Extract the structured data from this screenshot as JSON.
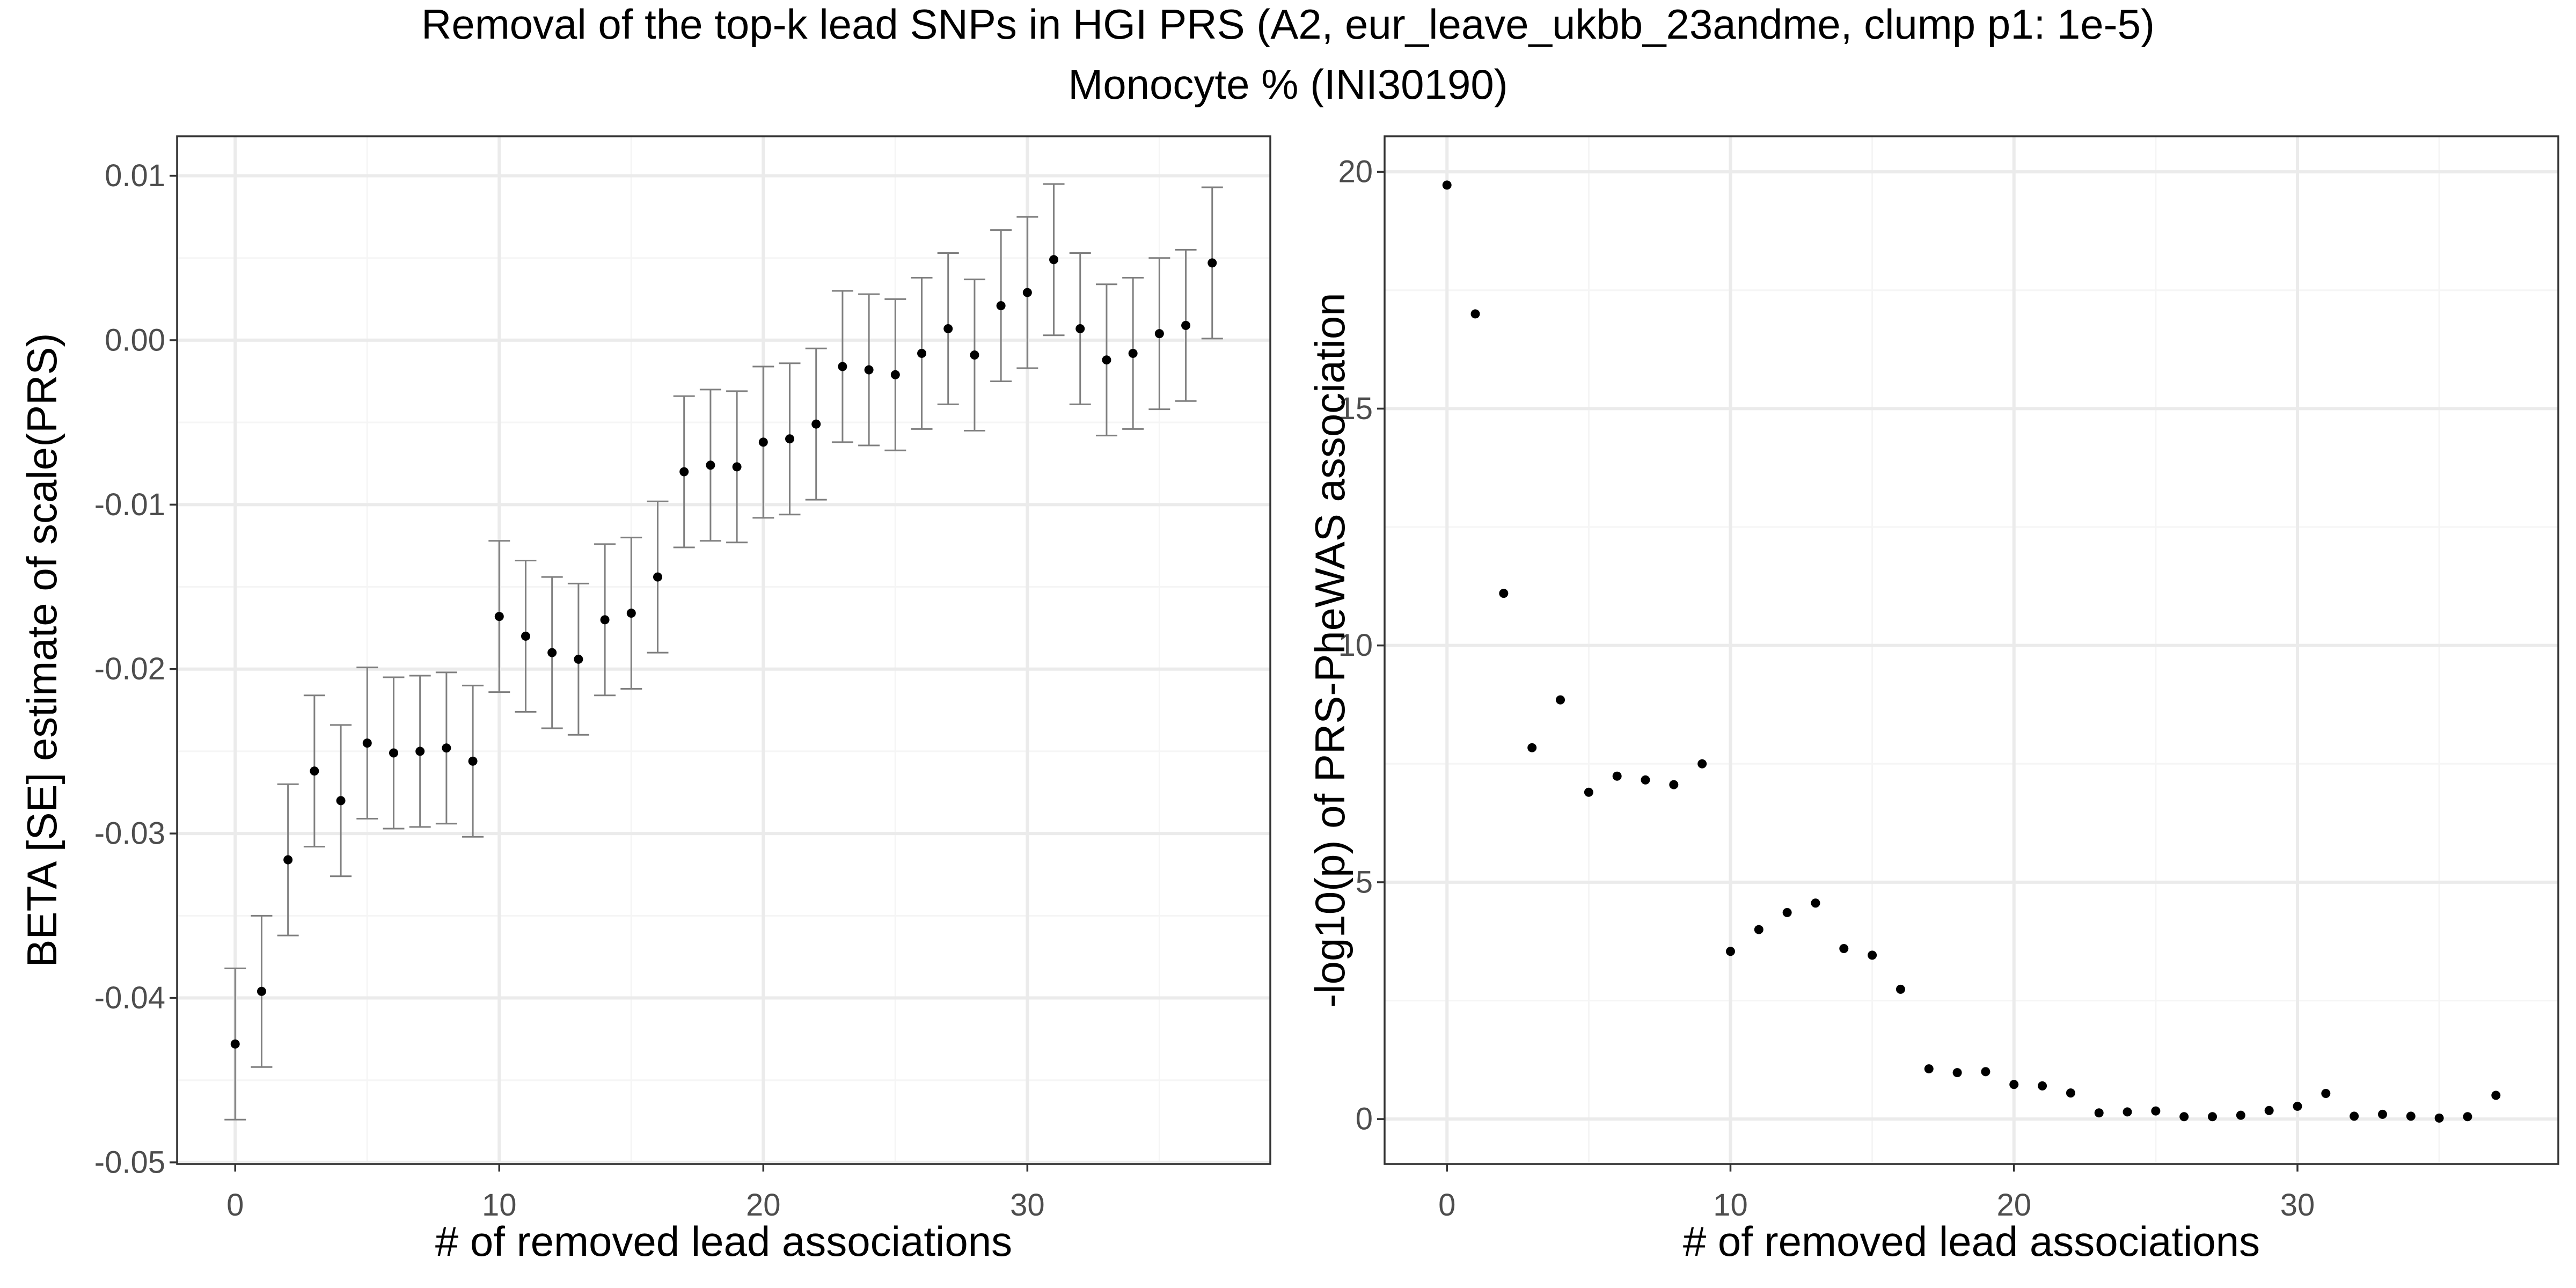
{
  "title": {
    "line1": "Removal of the top-k lead SNPs in HGI PRS (A2, eur_leave_ukbb_23andme, clump p1: 1e-5)",
    "line2": "Monocyte % (INI30190)"
  },
  "colors": {
    "background": "#ffffff",
    "panel_border": "#333333",
    "grid_major": "#ebebeb",
    "grid_minor": "#f5f5f5",
    "point": "#000000",
    "errorbar": "#7f7f7f",
    "tick_text": "#4d4d4d"
  },
  "chart_data": [
    {
      "type": "scatter",
      "id": "beta",
      "title": "",
      "xlabel": "# of removed lead associations",
      "ylabel": "BETA [SE] estimate of scale(PRS)",
      "xlim": [
        -2.2,
        39.2
      ],
      "ylim": [
        -0.0501,
        0.0124
      ],
      "xticks": [
        0,
        10,
        20,
        30
      ],
      "xtick_labels": [
        "0",
        "10",
        "20",
        "30"
      ],
      "yticks": [
        -0.05,
        -0.04,
        -0.03,
        -0.02,
        -0.01,
        0.0,
        0.01
      ],
      "ytick_labels": [
        "-0.05",
        "-0.04",
        "-0.03",
        "-0.02",
        "-0.01",
        "0.00",
        "0.01"
      ],
      "grid": true,
      "error_bars": true,
      "x": [
        0,
        1,
        2,
        3,
        4,
        5,
        6,
        7,
        8,
        9,
        10,
        11,
        12,
        13,
        14,
        15,
        16,
        17,
        18,
        19,
        20,
        21,
        22,
        23,
        24,
        25,
        26,
        27,
        28,
        29,
        30,
        31,
        32,
        33,
        34,
        35,
        36,
        37
      ],
      "y": [
        -0.0428,
        -0.0396,
        -0.0316,
        -0.0262,
        -0.028,
        -0.0245,
        -0.0251,
        -0.025,
        -0.0248,
        -0.0256,
        -0.0168,
        -0.018,
        -0.019,
        -0.0194,
        -0.017,
        -0.0166,
        -0.0144,
        -0.008,
        -0.0076,
        -0.0077,
        -0.0062,
        -0.006,
        -0.0051,
        -0.0016,
        -0.0018,
        -0.0021,
        -0.0008,
        0.0007,
        -0.0009,
        0.0021,
        0.0029,
        0.0049,
        0.0007,
        -0.0012,
        -0.0008,
        0.0004,
        0.0009,
        0.0047
      ],
      "se": [
        0.0046,
        0.0046,
        0.0046,
        0.0046,
        0.0046,
        0.0046,
        0.0046,
        0.0046,
        0.0046,
        0.0046,
        0.0046,
        0.0046,
        0.0046,
        0.0046,
        0.0046,
        0.0046,
        0.0046,
        0.0046,
        0.0046,
        0.0046,
        0.0046,
        0.0046,
        0.0046,
        0.0046,
        0.0046,
        0.0046,
        0.0046,
        0.0046,
        0.0046,
        0.0046,
        0.0046,
        0.0046,
        0.0046,
        0.0046,
        0.0046,
        0.0046,
        0.0046,
        0.0046
      ]
    },
    {
      "type": "scatter",
      "id": "pval",
      "title": "",
      "xlabel": "# of removed lead associations",
      "ylabel": "-log10(p) of PRS-PheWAS association",
      "xlim": [
        -2.2,
        39.2
      ],
      "ylim": [
        -0.95,
        20.75
      ],
      "xticks": [
        0,
        10,
        20,
        30
      ],
      "xtick_labels": [
        "0",
        "10",
        "20",
        "30"
      ],
      "yticks": [
        0,
        5,
        10,
        15,
        20
      ],
      "ytick_labels": [
        "0",
        "5",
        "10",
        "15",
        "20"
      ],
      "grid": true,
      "error_bars": false,
      "x": [
        0,
        1,
        2,
        3,
        4,
        5,
        6,
        7,
        8,
        9,
        10,
        11,
        12,
        13,
        14,
        15,
        16,
        17,
        18,
        19,
        20,
        21,
        22,
        23,
        24,
        25,
        26,
        27,
        28,
        29,
        30,
        31,
        32,
        33,
        34,
        35,
        36,
        37
      ],
      "y": [
        19.72,
        17.0,
        11.1,
        7.84,
        8.85,
        6.9,
        7.24,
        7.16,
        7.06,
        7.5,
        3.54,
        4.0,
        4.36,
        4.56,
        3.6,
        3.46,
        2.74,
        1.06,
        0.98,
        1.0,
        0.73,
        0.7,
        0.55,
        0.13,
        0.15,
        0.17,
        0.05,
        0.05,
        0.08,
        0.18,
        0.27,
        0.54,
        0.06,
        0.1,
        0.06,
        0.02,
        0.05,
        0.5
      ]
    }
  ]
}
